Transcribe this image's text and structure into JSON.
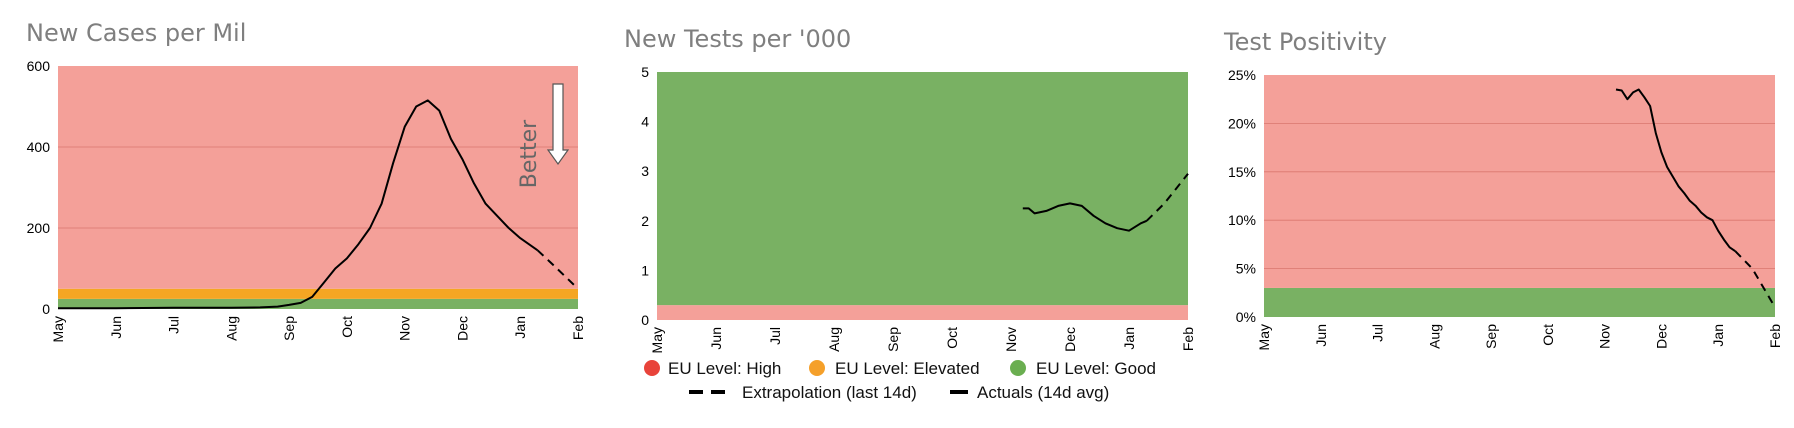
{
  "colors": {
    "high": "#F4A099",
    "elevated": "#F5A623",
    "good": "#79B163",
    "grid": "#D9776F",
    "line": "#000000",
    "legend_high": "#E8433A",
    "legend_elevated": "#F5A02A",
    "legend_good": "#6AAE50"
  },
  "legend": {
    "high": "EU Level: High",
    "elevated": "EU Level: Elevated",
    "good": "EU Level: Good",
    "extrapolation": "Extrapolation (last 14d)",
    "actuals": "Actuals (14d avg)"
  },
  "chart_data": [
    {
      "type": "line",
      "title": "New Cases per Mil",
      "x_ticks": [
        "May",
        "Jun",
        "Jul",
        "Aug",
        "Sep",
        "Oct",
        "Nov",
        "Dec",
        "Jan",
        "Feb"
      ],
      "x_range": [
        0,
        9
      ],
      "y_ticks": [
        "0",
        "200",
        "400",
        "600"
      ],
      "y_range": [
        0,
        600
      ],
      "grid": true,
      "annotation": {
        "text": "Better",
        "icon": "down-arrow-icon"
      },
      "bands": [
        {
          "level": "good",
          "from": 0,
          "to": 25
        },
        {
          "level": "elevated",
          "from": 25,
          "to": 50
        },
        {
          "level": "high",
          "from": 50,
          "to": 600
        }
      ],
      "series": [
        {
          "style": "solid",
          "x": [
            0,
            1,
            2,
            3,
            3.5,
            3.8,
            4.0,
            4.2,
            4.4,
            4.6,
            4.8,
            5.0,
            5.2,
            5.4,
            5.6,
            5.8,
            6.0,
            6.2,
            6.4,
            6.6,
            6.8,
            7.0,
            7.2,
            7.4,
            7.6,
            7.8,
            8.0,
            8.3
          ],
          "y": [
            2,
            2,
            3,
            3,
            4,
            6,
            10,
            15,
            30,
            65,
            100,
            125,
            160,
            200,
            260,
            360,
            450,
            500,
            515,
            490,
            420,
            370,
            310,
            260,
            230,
            200,
            175,
            145
          ]
        },
        {
          "style": "dashed",
          "x": [
            8.3,
            8.6,
            9.0
          ],
          "y": [
            145,
            105,
            50
          ]
        }
      ]
    },
    {
      "type": "line",
      "title": "New Tests per '000",
      "x_ticks": [
        "May",
        "Jun",
        "Jul",
        "Aug",
        "Sep",
        "Oct",
        "Nov",
        "Dec",
        "Jan",
        "Feb"
      ],
      "x_range": [
        0,
        9
      ],
      "y_ticks": [
        "0",
        "1",
        "2",
        "3",
        "4",
        "5"
      ],
      "y_range": [
        0,
        5
      ],
      "grid": false,
      "bands": [
        {
          "level": "high",
          "from": 0,
          "to": 0.3
        },
        {
          "level": "good",
          "from": 0.3,
          "to": 5
        }
      ],
      "series": [
        {
          "style": "solid",
          "x": [
            6.2,
            6.3,
            6.4,
            6.6,
            6.8,
            7.0,
            7.2,
            7.4,
            7.6,
            7.8,
            8.0,
            8.2,
            8.3
          ],
          "y": [
            2.25,
            2.25,
            2.15,
            2.2,
            2.3,
            2.35,
            2.3,
            2.1,
            1.95,
            1.85,
            1.8,
            1.95,
            2.0
          ]
        },
        {
          "style": "dashed",
          "x": [
            8.3,
            8.6,
            9.0
          ],
          "y": [
            2.0,
            2.35,
            2.95
          ]
        }
      ]
    },
    {
      "type": "line",
      "title": "Test Positivity",
      "x_ticks": [
        "May",
        "Jun",
        "Jul",
        "Aug",
        "Sep",
        "Oct",
        "Nov",
        "Dec",
        "Jan",
        "Feb"
      ],
      "x_range": [
        0,
        9
      ],
      "y_ticks": [
        "0%",
        "5%",
        "10%",
        "15%",
        "20%",
        "25%"
      ],
      "y_range": [
        0,
        25
      ],
      "grid": true,
      "bands": [
        {
          "level": "good",
          "from": 0,
          "to": 3
        },
        {
          "level": "high",
          "from": 3,
          "to": 25
        }
      ],
      "series": [
        {
          "style": "solid",
          "x": [
            6.2,
            6.3,
            6.4,
            6.5,
            6.6,
            6.7,
            6.8,
            6.9,
            7.0,
            7.1,
            7.2,
            7.3,
            7.4,
            7.5,
            7.6,
            7.7,
            7.8,
            7.9,
            8.0,
            8.1,
            8.2,
            8.3
          ],
          "y": [
            23.5,
            23.4,
            22.5,
            23.2,
            23.5,
            22.7,
            21.8,
            19.0,
            17.0,
            15.5,
            14.5,
            13.5,
            12.8,
            12.0,
            11.5,
            10.8,
            10.3,
            10.0,
            8.9,
            8.0,
            7.2,
            6.8
          ]
        },
        {
          "style": "dashed",
          "x": [
            8.3,
            8.6,
            9.0
          ],
          "y": [
            6.8,
            5.0,
            1.0
          ]
        }
      ]
    }
  ]
}
